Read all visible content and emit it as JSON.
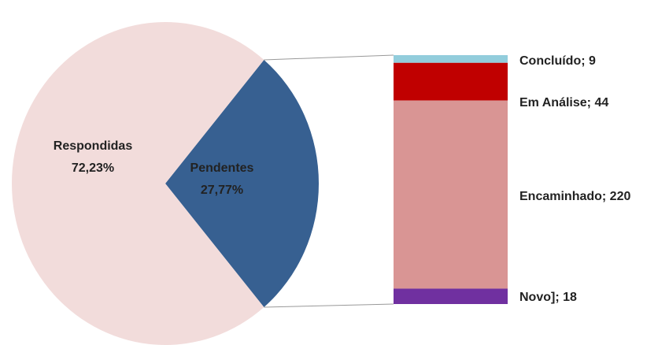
{
  "chart_data": [
    {
      "type": "pie",
      "categories": [
        "Respondidas",
        "Pendentes"
      ],
      "values": [
        72.23,
        27.77
      ],
      "value_labels": [
        "72,23%",
        "27,77%"
      ],
      "colors": [
        "#f2dcdb",
        "#376091"
      ]
    },
    {
      "type": "stacked-bar",
      "categories": [
        "Concluído",
        "Em Análise",
        "Encaminhado",
        "Novo]"
      ],
      "values": [
        9,
        44,
        220,
        18
      ],
      "value_labels": [
        "Concluído; 9",
        "Em Análise; 44",
        "Encaminhado; 220",
        "Novo]; 18"
      ],
      "colors": [
        "#92cddc",
        "#c00000",
        "#d99594",
        "#7030a0"
      ]
    }
  ]
}
